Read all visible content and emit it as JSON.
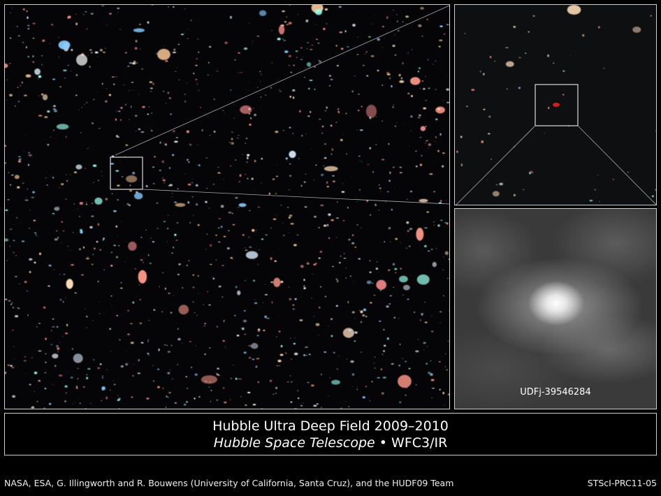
{
  "inset": {
    "label": "UDFj-39546284"
  },
  "caption": {
    "title": "Hubble Ultra Deep Field 2009–2010",
    "telescope": "Hubble Space Telescope",
    "separator": " • ",
    "instrument": "WFC3/IR"
  },
  "footer": {
    "credit": "NASA, ESA, G. Illingworth and R. Bouwens (University of California, Santa Cruz), and the HUDF09 Team",
    "id": "STScI-PRC11-05"
  },
  "colors": {
    "background": "#000000",
    "frame": "#cfcfcf"
  }
}
